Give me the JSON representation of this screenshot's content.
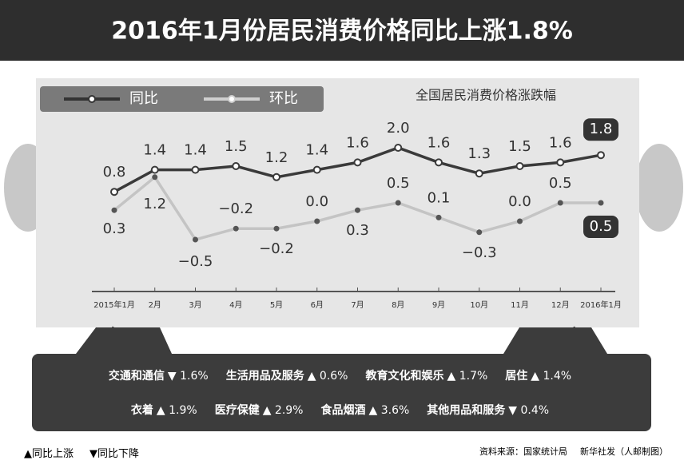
{
  "chart_data": {
    "type": "line",
    "title": "2016年1月份居民消费价格同比上涨1.8%",
    "subtitle": "全国居民消费价格涨跌幅",
    "categories": [
      "2015年1月",
      "2月",
      "3月",
      "4月",
      "5月",
      "6月",
      "7月",
      "8月",
      "9月",
      "10月",
      "11月",
      "12月",
      "2016年1月"
    ],
    "series": [
      {
        "name": "同比",
        "color": "#3a3a3a",
        "values": [
          0.8,
          1.4,
          1.4,
          1.5,
          1.2,
          1.4,
          1.6,
          2.0,
          1.6,
          1.3,
          1.5,
          1.6,
          1.8
        ],
        "value_labels": [
          "0.8",
          "1.4",
          "1.4",
          "1.5",
          "1.2",
          "1.4",
          "1.6",
          "2.0",
          "1.6",
          "1.3",
          "1.5",
          "1.6",
          "1.8"
        ]
      },
      {
        "name": "环比",
        "color": "#b8b8b8",
        "values": [
          0.3,
          1.2,
          -0.5,
          -0.2,
          -0.2,
          0.0,
          0.3,
          0.5,
          0.1,
          -0.3,
          0.0,
          0.5,
          0.5
        ],
        "value_labels": [
          "0.3",
          "1.2",
          "−0.5",
          "−0.2",
          "−0.2",
          "0.0",
          "0.3",
          "0.5",
          "0.1",
          "−0.3",
          "0.0",
          "0.5",
          "0.5"
        ]
      }
    ]
  },
  "breakdown": {
    "rows": [
      [
        {
          "name": "交通和通信",
          "change": "▼ 1.6%"
        },
        {
          "name": "生活用品及服务",
          "change": "▲ 0.6%"
        },
        {
          "name": "教育文化和娱乐",
          "change": "▲ 1.7%"
        },
        {
          "name": "居住",
          "change": "▲ 1.4%"
        }
      ],
      [
        {
          "name": "衣着",
          "change": "▲ 1.9%"
        },
        {
          "name": "医疗保健",
          "change": "▲ 2.9%"
        },
        {
          "name": "食品烟酒",
          "change": "▲ 3.6%"
        },
        {
          "name": "其他用品和服务",
          "change": "▼ 0.4%"
        }
      ]
    ]
  },
  "footer": {
    "up": "▲同比上涨",
    "down": "▼同比下降",
    "source": "资料来源：国家统计局",
    "credit": "新华社发（人邮制图）"
  }
}
